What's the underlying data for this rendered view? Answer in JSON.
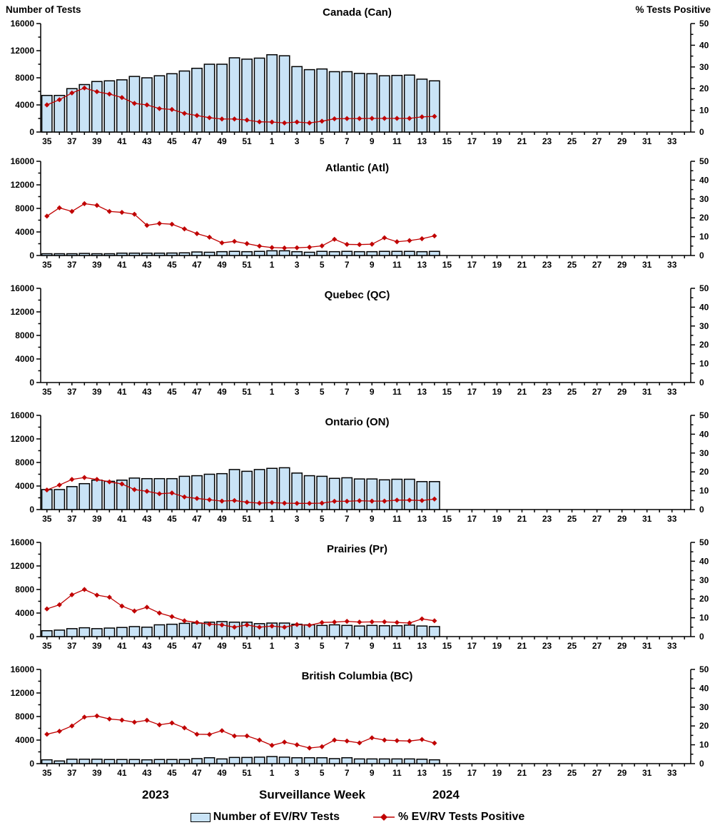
{
  "header": {
    "left_axis_title": "Number of Tests",
    "right_axis_title": "% Tests Positive"
  },
  "footer": {
    "year_left": "2023",
    "axis_title": "Surveillance Week",
    "year_right": "2024",
    "legend_bar_label": "Number of EV/RV Tests",
    "legend_line_label": "% EV/RV Tests Positive"
  },
  "colors": {
    "bar_fill": "#C9E3F6",
    "bar_stroke": "#000000",
    "line_color": "#C00000",
    "axis_color": "#000000",
    "text_color": "#000000"
  },
  "chart_data": {
    "type": "bar+line",
    "xlabel": "Surveillance Week",
    "ylabel_left": "Number of Tests",
    "ylabel_right": "% Tests Positive",
    "ylim_left": [
      0,
      16000
    ],
    "ylim_right": [
      0,
      50
    ],
    "yticks_left": [
      0,
      4000,
      8000,
      12000,
      16000
    ],
    "yticks_right": [
      0,
      10,
      20,
      30,
      40,
      50
    ],
    "x_all_weeks": [
      35,
      36,
      37,
      38,
      39,
      40,
      41,
      42,
      43,
      44,
      45,
      46,
      47,
      48,
      49,
      50,
      51,
      52,
      1,
      2,
      3,
      4,
      5,
      6,
      7,
      8,
      9,
      10,
      11,
      12,
      13,
      14,
      15,
      16,
      17,
      18,
      19,
      20,
      21,
      22,
      23,
      24,
      25,
      26,
      27,
      28,
      29,
      30,
      31,
      32,
      33,
      34
    ],
    "x_axis_tick_labels": [
      35,
      37,
      39,
      41,
      43,
      45,
      47,
      49,
      51,
      1,
      3,
      5,
      7,
      9,
      11,
      13,
      15,
      17,
      19,
      21,
      23,
      25,
      27,
      29,
      31,
      33
    ],
    "data_weeks": [
      35,
      36,
      37,
      38,
      39,
      40,
      41,
      42,
      43,
      44,
      45,
      46,
      47,
      48,
      49,
      50,
      51,
      52,
      1,
      2,
      3,
      4,
      5,
      6,
      7,
      8,
      9,
      10,
      11,
      12,
      13,
      14
    ],
    "series_legend": [
      "Number of EV/RV Tests",
      "% EV/RV Tests Positive"
    ],
    "panels": [
      {
        "title": "Canada (Can)",
        "tests": [
          5400,
          5400,
          6400,
          7000,
          7450,
          7550,
          7700,
          8200,
          8000,
          8300,
          8600,
          9000,
          9400,
          10000,
          10000,
          10950,
          10750,
          10900,
          11400,
          11250,
          9650,
          9200,
          9300,
          8900,
          8900,
          8650,
          8600,
          8300,
          8350,
          8400,
          7800,
          7550
        ],
        "percent_positive": [
          12.5,
          14.9,
          18.0,
          20.3,
          18.6,
          17.5,
          15.9,
          13.2,
          12.5,
          10.8,
          10.4,
          8.6,
          7.6,
          6.6,
          6.0,
          6.0,
          5.5,
          4.7,
          4.6,
          4.2,
          4.6,
          4.2,
          5.0,
          6.1,
          6.2,
          6.2,
          6.3,
          6.3,
          6.3,
          6.3,
          7.0,
          7.2
        ]
      },
      {
        "title": "Atlantic (Atl)",
        "tests": [
          300,
          300,
          300,
          350,
          300,
          300,
          400,
          400,
          400,
          400,
          420,
          450,
          600,
          550,
          650,
          700,
          650,
          700,
          800,
          800,
          650,
          550,
          700,
          650,
          700,
          650,
          650,
          700,
          700,
          700,
          650,
          700
        ],
        "percent_positive": [
          20.9,
          25.3,
          23.4,
          27.5,
          26.6,
          23.4,
          22.9,
          21.9,
          16.0,
          17.0,
          16.6,
          14.1,
          11.6,
          9.7,
          6.7,
          7.5,
          6.3,
          5.0,
          4.2,
          4.0,
          4.1,
          4.4,
          5.1,
          8.6,
          5.9,
          5.8,
          6.0,
          9.4,
          7.3,
          7.9,
          8.9,
          10.4
        ]
      },
      {
        "title": "Quebec (QC)",
        "tests": [],
        "percent_positive": []
      },
      {
        "title": "Ontario (ON)",
        "tests": [
          3400,
          3400,
          3900,
          4400,
          5000,
          4800,
          5000,
          5350,
          5250,
          5250,
          5250,
          5650,
          5750,
          6000,
          6100,
          6800,
          6500,
          6800,
          7000,
          7100,
          6200,
          5750,
          5650,
          5300,
          5400,
          5200,
          5200,
          5050,
          5150,
          5150,
          4750,
          4750
        ],
        "percent_positive": [
          10.4,
          13.0,
          16.0,
          17.0,
          16.0,
          14.7,
          13.6,
          10.6,
          9.7,
          8.4,
          8.8,
          6.7,
          5.9,
          5.2,
          4.5,
          4.8,
          3.9,
          3.4,
          3.7,
          3.4,
          3.3,
          3.3,
          3.4,
          4.4,
          4.4,
          4.7,
          4.5,
          4.5,
          5.0,
          5.0,
          4.8,
          5.6
        ]
      },
      {
        "title": "Prairies (Pr)",
        "tests": [
          1000,
          1100,
          1350,
          1500,
          1350,
          1450,
          1550,
          1700,
          1600,
          2000,
          2100,
          2250,
          2300,
          2450,
          2550,
          2450,
          2450,
          2200,
          2300,
          2300,
          2100,
          2000,
          1900,
          2000,
          1900,
          1800,
          1900,
          1850,
          1850,
          1950,
          1800,
          1700
        ],
        "percent_positive": [
          14.7,
          16.9,
          22.2,
          25.0,
          22.0,
          20.9,
          16.2,
          13.6,
          15.6,
          12.5,
          10.6,
          8.4,
          7.5,
          6.6,
          6.2,
          5.0,
          6.2,
          5.0,
          5.6,
          5.0,
          6.4,
          6.0,
          7.5,
          7.7,
          8.1,
          7.7,
          7.8,
          7.8,
          7.5,
          7.2,
          9.4,
          8.4
        ]
      },
      {
        "title": "British Columbia (BC)",
        "tests": [
          650,
          450,
          750,
          750,
          750,
          700,
          700,
          700,
          650,
          700,
          700,
          700,
          850,
          1000,
          800,
          1050,
          1050,
          1100,
          1200,
          1100,
          1000,
          1000,
          1000,
          850,
          1000,
          800,
          800,
          800,
          800,
          800,
          750,
          650
        ],
        "percent_positive": [
          15.6,
          17.2,
          20.0,
          24.7,
          25.3,
          23.7,
          23.1,
          22.0,
          23.0,
          20.6,
          21.6,
          19.0,
          15.6,
          15.5,
          17.5,
          14.7,
          14.7,
          12.5,
          9.7,
          11.4,
          10.0,
          8.3,
          9.0,
          12.5,
          12.0,
          11.0,
          13.7,
          12.5,
          12.2,
          12.0,
          12.8,
          10.9
        ]
      }
    ]
  }
}
